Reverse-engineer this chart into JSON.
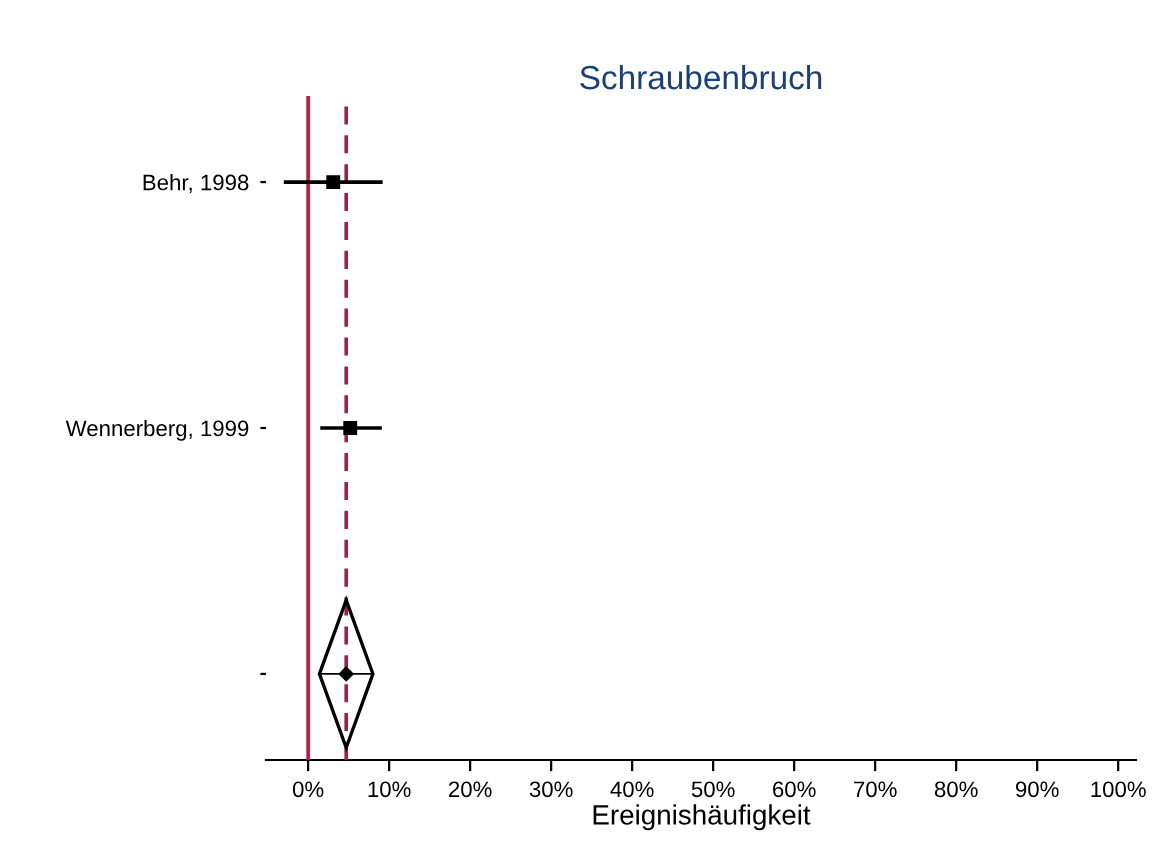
{
  "chart_data": {
    "type": "scatter",
    "orientation": "horizontal",
    "title": "Schraubenbruch",
    "xlabel": "Ereignishäufigkeit",
    "categories": [
      "Behr, 1998",
      "Wennerberg, 1999",
      null
    ],
    "series": [
      {
        "marker": "square",
        "color": "#000000",
        "values": [
          3.1,
          5.2,
          null
        ],
        "errors": [
          [
            -3,
            9.2
          ],
          [
            1.5,
            9.1
          ],
          null
        ]
      },
      {
        "marker": "diamond",
        "color": "#000000",
        "values": [
          null,
          null,
          4.7
        ],
        "errors": [
          null,
          null,
          [
            1.4,
            8.0
          ]
        ]
      }
    ],
    "ref_lines": [
      {
        "axis": "x",
        "value": 0,
        "color": "#d0103a",
        "line_style": "solid"
      },
      {
        "axis": "x",
        "value": 4.7,
        "color": "#a0204a",
        "line_style": "dashed"
      }
    ],
    "xlim": [
      -5.2,
      102.2
    ],
    "xticks": [
      {
        "value": 0,
        "label": "0%"
      },
      {
        "value": 10,
        "label": "10%"
      },
      {
        "value": 20,
        "label": "20%"
      },
      {
        "value": 30,
        "label": "30%"
      },
      {
        "value": 40,
        "label": "40%"
      },
      {
        "value": 50,
        "label": "50%"
      },
      {
        "value": 60,
        "label": "60%"
      },
      {
        "value": 70,
        "label": "70%"
      },
      {
        "value": 80,
        "label": "80%"
      },
      {
        "value": 90,
        "label": "90%"
      },
      {
        "value": 100,
        "label": "100%"
      }
    ],
    "grid": false,
    "legend": false
  }
}
